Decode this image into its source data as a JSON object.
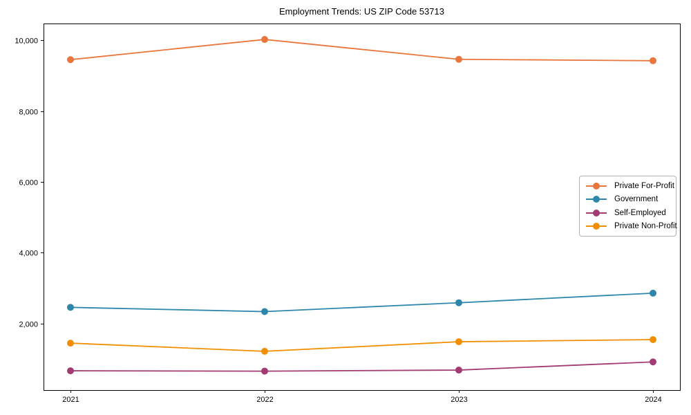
{
  "title": "Employment Trends: US ZIP Code 53713",
  "chart_data": {
    "type": "line",
    "title": "Employment Trends: US ZIP Code 53713",
    "categories": [
      "2021",
      "2022",
      "2023",
      "2024"
    ],
    "series": [
      {
        "name": "Private For-Profit",
        "color": "#E8763D",
        "values": [
          9450,
          10020,
          9460,
          9420
        ]
      },
      {
        "name": "Government",
        "color": "#2E86AB",
        "values": [
          2460,
          2340,
          2590,
          2860
        ]
      },
      {
        "name": "Self-Employed",
        "color": "#A23B72",
        "values": [
          670,
          660,
          690,
          920
        ]
      },
      {
        "name": "Private Non-Profit",
        "color": "#F18F01",
        "values": [
          1450,
          1220,
          1490,
          1550
        ]
      }
    ],
    "xlabel": "",
    "ylabel": "",
    "ylim": [
      125,
      10470
    ],
    "yticks": [
      2000,
      4000,
      6000,
      8000,
      10000
    ],
    "ytick_labels": [
      "2,000",
      "4,000",
      "6,000",
      "8,000",
      "10,000"
    ],
    "grid": false,
    "legend_position": "center-right",
    "marker": "circle",
    "frame_color": "#000000"
  }
}
